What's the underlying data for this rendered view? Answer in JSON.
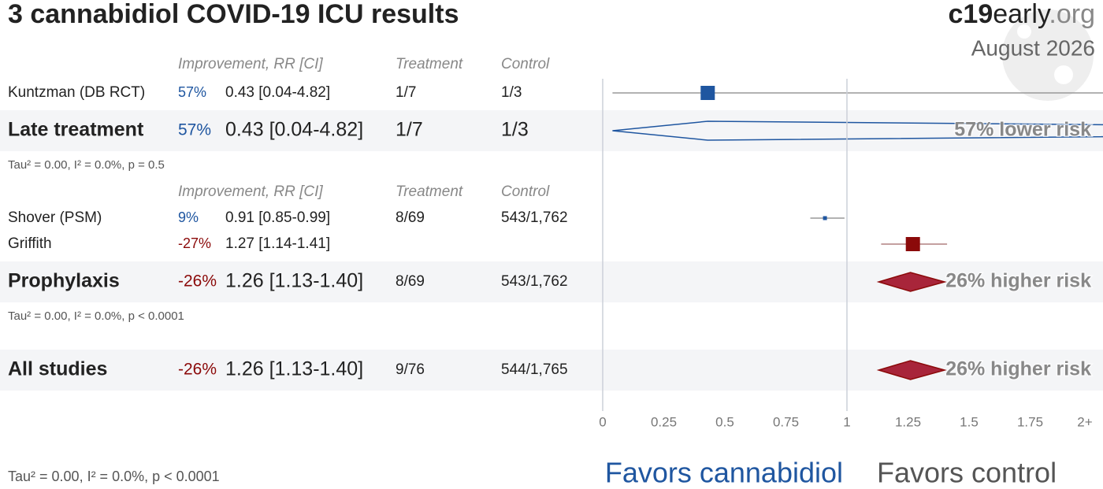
{
  "chart_data": {
    "type": "forest",
    "title": "3 cannabidiol COVID-19 ICU results",
    "brand": {
      "strong": "c19",
      "middle": "early",
      "tld": ".org"
    },
    "date": "August 2026",
    "groups": [
      {
        "header": {
          "improvement": "Improvement, RR [CI]",
          "treatment": "Treatment",
          "control": "Control"
        },
        "studies": [
          {
            "name": "Kuntzman (DB RCT)",
            "improvement": "57%",
            "rr": 0.43,
            "ci": [
              0.04,
              4.82
            ],
            "rr_label": "0.43 [0.04-4.82]",
            "treatment": "1/7",
            "control": "1/3"
          }
        ],
        "summary": {
          "name": "Late treatment",
          "improvement": "57%",
          "rr": 0.43,
          "ci": [
            0.04,
            4.82
          ],
          "rr_label": "0.43 [0.04-4.82]",
          "treatment": "1/7",
          "control": "1/3",
          "effect": "57% lower risk"
        },
        "heterogeneity": "Tau² = 0.00, I² = 0.0%, p = 0.5"
      },
      {
        "header": {
          "improvement": "Improvement, RR [CI]",
          "treatment": "Treatment",
          "control": "Control"
        },
        "studies": [
          {
            "name": "Shover (PSM)",
            "improvement": "9%",
            "rr": 0.91,
            "ci": [
              0.85,
              0.99
            ],
            "rr_label": "0.91 [0.85-0.99]",
            "treatment": "8/69",
            "control": "543/1,762"
          },
          {
            "name": "Griffith",
            "improvement": "-27%",
            "rr": 1.27,
            "ci": [
              1.14,
              1.41
            ],
            "rr_label": "1.27 [1.14-1.41]",
            "treatment": "",
            "control": ""
          }
        ],
        "summary": {
          "name": "Prophylaxis",
          "improvement": "-26%",
          "rr": 1.26,
          "ci": [
            1.13,
            1.4
          ],
          "rr_label": "1.26 [1.13-1.40]",
          "treatment": "8/69",
          "control": "543/1,762",
          "effect": "26% higher risk"
        },
        "heterogeneity": "Tau² = 0.00, I² = 0.0%, p < 0.0001"
      }
    ],
    "overall": {
      "name": "All studies",
      "improvement": "-26%",
      "rr": 1.26,
      "ci": [
        1.13,
        1.4
      ],
      "rr_label": "1.26 [1.13-1.40]",
      "treatment": "9/76",
      "control": "544/1,765",
      "effect": "26% higher risk",
      "heterogeneity": "Tau² = 0.00, I² = 0.0%, p < 0.0001"
    },
    "xlim": [
      0,
      2
    ],
    "xticks": [
      0,
      0.25,
      0.5,
      0.75,
      1,
      1.25,
      1.5,
      1.75,
      {
        "value": 2,
        "label": "2+"
      }
    ],
    "reference_lines": [
      0,
      1
    ],
    "favors": {
      "left": "Favors cannabidiol",
      "right": "Favors control"
    },
    "colors": {
      "benefit": "#1f56a0",
      "harm": "#8b0a0a",
      "harm_diamond": "#a8253a"
    }
  }
}
